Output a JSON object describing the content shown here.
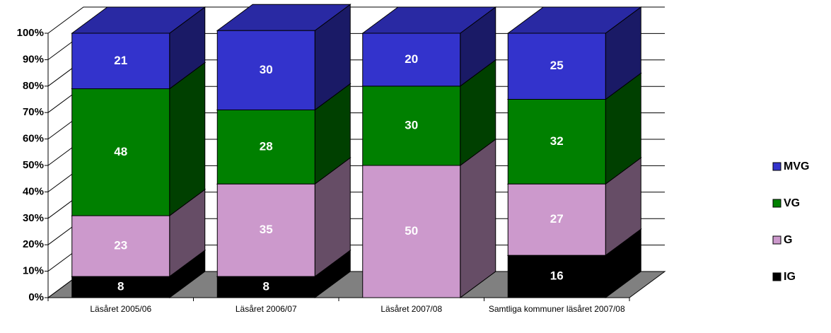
{
  "chart_data": {
    "type": "bar3d_stacked",
    "categories": [
      "Läsåret 2005/06",
      "Läsåret 2006/07",
      "Läsåret 2007/08",
      "Samtliga kommuner läsåret 2007/08"
    ],
    "series": [
      {
        "name": "IG",
        "color": "#000000",
        "values": [
          8,
          8,
          0,
          16
        ]
      },
      {
        "name": "G",
        "color": "#cc99cc",
        "values": [
          23,
          35,
          50,
          27
        ]
      },
      {
        "name": "VG",
        "color": "#008000",
        "values": [
          48,
          28,
          30,
          32
        ]
      },
      {
        "name": "MVG",
        "color": "#3333cc",
        "values": [
          21,
          30,
          20,
          25
        ]
      }
    ],
    "ylim": [
      0,
      100
    ],
    "yticks": [
      {
        "value": 0,
        "label": "0%"
      },
      {
        "value": 10,
        "label": "10%"
      },
      {
        "value": 20,
        "label": "20%"
      },
      {
        "value": 30,
        "label": "30%"
      },
      {
        "value": 40,
        "label": "40%"
      },
      {
        "value": 50,
        "label": "50%"
      },
      {
        "value": 60,
        "label": "60%"
      },
      {
        "value": 70,
        "label": "70%"
      },
      {
        "value": 80,
        "label": "80%"
      },
      {
        "value": 90,
        "label": "90%"
      },
      {
        "value": 100,
        "label": "100%"
      }
    ],
    "grid": true,
    "legend": "right"
  }
}
